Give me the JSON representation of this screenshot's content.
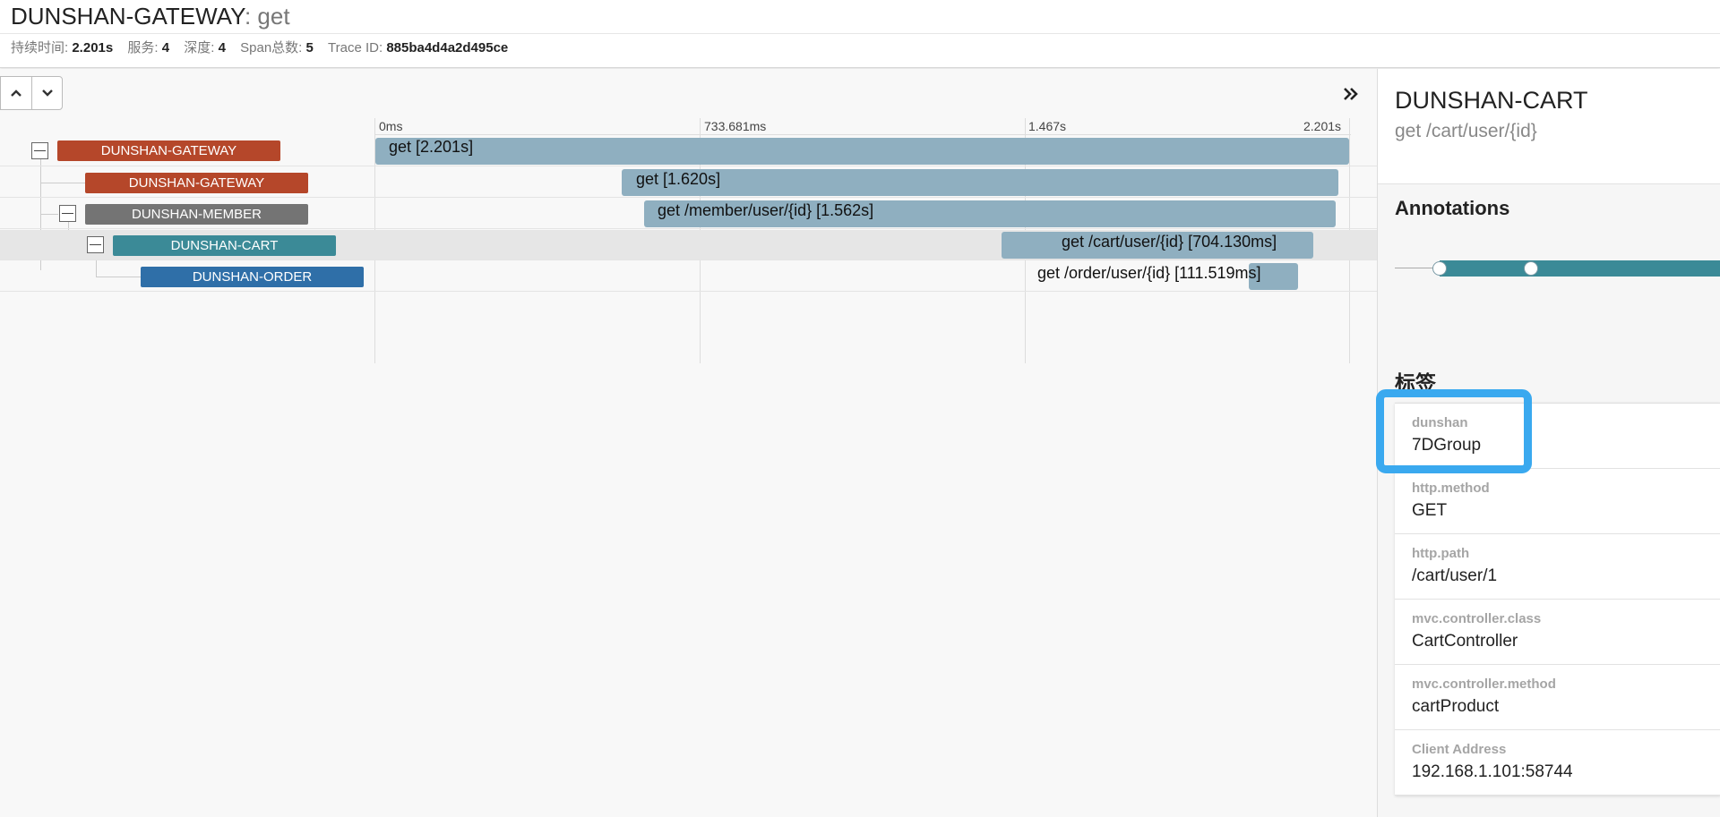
{
  "header": {
    "service": "DUNSHAN-GATEWAY",
    "operation": ": get",
    "meta": [
      {
        "label": "持续时间:",
        "value": "2.201s"
      },
      {
        "label": "服务:",
        "value": "4"
      },
      {
        "label": "深度:",
        "value": "4"
      },
      {
        "label": "Span总数:",
        "value": "5"
      },
      {
        "label": "Trace ID:",
        "value": "885ba4d4a2d495ce"
      }
    ]
  },
  "timeline": {
    "ticks": [
      "0ms",
      "733.681ms",
      "1.467s",
      "2.201s"
    ],
    "spans": [
      {
        "service": "DUNSHAN-GATEWAY",
        "label": "get [2.201s]",
        "color": "#b5472a",
        "start_ms": 0,
        "duration_ms": 2201,
        "depth": 0,
        "collapsible": true
      },
      {
        "service": "DUNSHAN-GATEWAY",
        "label": "get [1.620s]",
        "color": "#b5472a",
        "start_ms": 557,
        "duration_ms": 1620,
        "depth": 1,
        "collapsible": false
      },
      {
        "service": "DUNSHAN-MEMBER",
        "label": "get /member/user/{id} [1.562s]",
        "color": "#747474",
        "start_ms": 608,
        "duration_ms": 1562,
        "depth": 1,
        "collapsible": true
      },
      {
        "service": "DUNSHAN-CART",
        "label": "get /cart/user/{id} [704.130ms]",
        "color": "#3b8a97",
        "start_ms": 1415,
        "duration_ms": 704.13,
        "depth": 2,
        "collapsible": true,
        "selected": true
      },
      {
        "service": "DUNSHAN-ORDER",
        "label": "get /order/user/{id} [111.519ms]",
        "color": "#2f6fa8",
        "start_ms": 1975,
        "duration_ms": 111.519,
        "depth": 3,
        "collapsible": false
      }
    ]
  },
  "detail": {
    "service": "DUNSHAN-CART",
    "operation": "get /cart/user/{id}",
    "annotations_title": "Annotations",
    "tags_title": "标签",
    "tags": [
      {
        "key": "dunshan",
        "value": "7DGroup"
      },
      {
        "key": "http.method",
        "value": "GET"
      },
      {
        "key": "http.path",
        "value": "/cart/user/1"
      },
      {
        "key": "mvc.controller.class",
        "value": "CartController"
      },
      {
        "key": "mvc.controller.method",
        "value": "cartProduct"
      },
      {
        "key": "Client Address",
        "value": "192.168.1.101:58744"
      }
    ]
  },
  "colors": {
    "span_bar": "#8fafc0",
    "highlight": "#3aa9ef",
    "annotation_bar": "#3b8a97"
  },
  "icons": [
    "chevron-up-icon",
    "chevron-down-icon",
    "double-chevron-right-icon",
    "collapse-minus-icon"
  ]
}
